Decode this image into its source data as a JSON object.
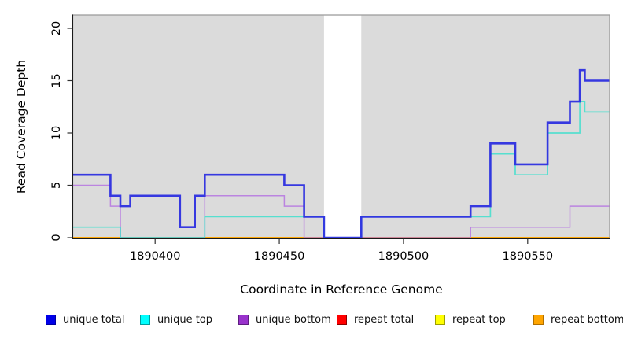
{
  "chart_data": {
    "type": "line",
    "style": "step",
    "title": "",
    "xlabel": "Coordinate in Reference Genome",
    "ylabel": "Read Coverage Depth",
    "xlim": [
      1890367,
      1890583
    ],
    "ylim": [
      0,
      21.3
    ],
    "x_ticks": [
      1890400,
      1890450,
      1890500,
      1890550
    ],
    "y_ticks": [
      0,
      5,
      10,
      15,
      20
    ],
    "grid": false,
    "legend_position": "bottom",
    "plot_background": "#dbdbdb",
    "gap_region": {
      "x_start": 1890468,
      "x_end": 1890483,
      "color": "#ffffff"
    },
    "series": [
      {
        "name": "unique total",
        "color": "#2d2fe0",
        "swatch": "#0000e8",
        "swatch_border": "#0000a0",
        "width": 2.6,
        "opacity": 0.95,
        "steps": [
          [
            1890367,
            6
          ],
          [
            1890382,
            4
          ],
          [
            1890386,
            3
          ],
          [
            1890390,
            4
          ],
          [
            1890410,
            1
          ],
          [
            1890416,
            4
          ],
          [
            1890420,
            6
          ],
          [
            1890452,
            5
          ],
          [
            1890460,
            2
          ],
          [
            1890468,
            0
          ],
          [
            1890483,
            2
          ],
          [
            1890527,
            3
          ],
          [
            1890535,
            9
          ],
          [
            1890545,
            7
          ],
          [
            1890558,
            11
          ],
          [
            1890567,
            13
          ],
          [
            1890571,
            16
          ],
          [
            1890573,
            15
          ]
        ]
      },
      {
        "name": "unique top",
        "color": "#35e0cc",
        "swatch": "#00ffff",
        "swatch_border": "#009e9e",
        "width": 1.7,
        "opacity": 0.8,
        "steps": [
          [
            1890367,
            1
          ],
          [
            1890386,
            0
          ],
          [
            1890420,
            2
          ],
          [
            1890468,
            0
          ],
          [
            1890483,
            2
          ],
          [
            1890535,
            8
          ],
          [
            1890545,
            6
          ],
          [
            1890558,
            10
          ],
          [
            1890571,
            13
          ],
          [
            1890573,
            12
          ]
        ]
      },
      {
        "name": "unique bottom",
        "color": "#b678e0",
        "swatch": "#9932cc",
        "swatch_border": "#5e1d80",
        "width": 1.5,
        "opacity": 0.88,
        "steps": [
          [
            1890367,
            5
          ],
          [
            1890382,
            3
          ],
          [
            1890386,
            0
          ],
          [
            1890420,
            4
          ],
          [
            1890452,
            3
          ],
          [
            1890460,
            0
          ],
          [
            1890527,
            1
          ],
          [
            1890567,
            3
          ]
        ]
      },
      {
        "name": "repeat total",
        "color": "#cc1111",
        "swatch": "#ff0000",
        "swatch_border": "#8e0000",
        "width": 1.5,
        "opacity": 1,
        "steps": [
          [
            1890367,
            0
          ]
        ]
      },
      {
        "name": "repeat top",
        "color": "#f0e000",
        "swatch": "#ffff00",
        "swatch_border": "#9e9e00",
        "width": 1.5,
        "opacity": 1,
        "steps": [
          [
            1890367,
            0
          ]
        ]
      },
      {
        "name": "repeat bottom",
        "color": "#ffa500",
        "swatch": "#ffa500",
        "swatch_border": "#b06f00",
        "width": 1.8,
        "opacity": 1,
        "steps": [
          [
            1890367,
            0
          ]
        ]
      }
    ],
    "draw_order": [
      3,
      4,
      5,
      2,
      1,
      0
    ]
  },
  "legend": {
    "items": [
      "unique total",
      "unique top",
      "unique bottom",
      "repeat total",
      "repeat top",
      "repeat bottom"
    ]
  }
}
